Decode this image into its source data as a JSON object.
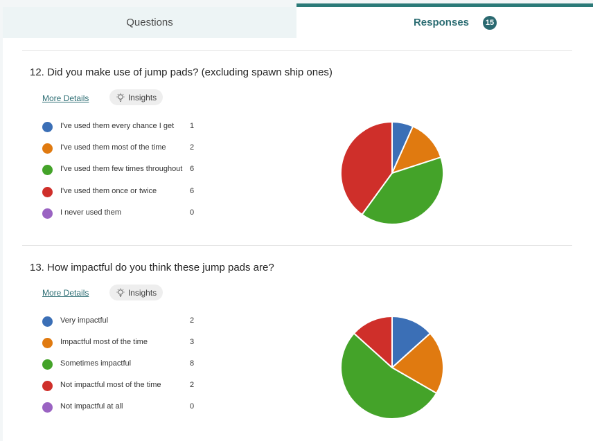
{
  "tabs": {
    "questions_label": "Questions",
    "responses_label": "Responses",
    "responses_count": "15"
  },
  "colors": {
    "accent": "#2b7a78",
    "series": [
      "#3b6fb6",
      "#e07a10",
      "#44a329",
      "#cf2f2a",
      "#9a63c2"
    ]
  },
  "common": {
    "more_details": "More Details",
    "insights": "Insights",
    "insights_icon": "lightbulb-icon"
  },
  "questions": [
    {
      "title": "12.  Did you make use of jump pads? (excluding spawn ship ones)",
      "options": [
        {
          "label": "I've used them every chance I get",
          "count": "1"
        },
        {
          "label": "I've used them most of the time",
          "count": "2"
        },
        {
          "label": "I've used them few times throughout",
          "count": "6"
        },
        {
          "label": "I've used them once or twice",
          "count": "6"
        },
        {
          "label": "I never used them",
          "count": "0"
        }
      ]
    },
    {
      "title": "13.  How impactful do you think these jump pads are?",
      "options": [
        {
          "label": "Very impactful",
          "count": "2"
        },
        {
          "label": "Impactful most of the time",
          "count": "3"
        },
        {
          "label": "Sometimes impactful",
          "count": "8"
        },
        {
          "label": "Not impactful most of the time",
          "count": "2"
        },
        {
          "label": "Not impactful at all",
          "count": "0"
        }
      ]
    }
  ],
  "chart_data": [
    {
      "type": "pie",
      "categories": [
        "I've used them every chance I get",
        "I've used them most of the time",
        "I've used them few times throughout",
        "I've used them once or twice",
        "I never used them"
      ],
      "values": [
        1,
        2,
        6,
        6,
        0
      ],
      "colors": [
        "#3b6fb6",
        "#e07a10",
        "#44a329",
        "#cf2f2a",
        "#9a63c2"
      ]
    },
    {
      "type": "pie",
      "categories": [
        "Very impactful",
        "Impactful most of the time",
        "Sometimes impactful",
        "Not impactful most of the time",
        "Not impactful at all"
      ],
      "values": [
        2,
        3,
        8,
        2,
        0
      ],
      "colors": [
        "#3b6fb6",
        "#e07a10",
        "#44a329",
        "#cf2f2a",
        "#9a63c2"
      ]
    }
  ]
}
